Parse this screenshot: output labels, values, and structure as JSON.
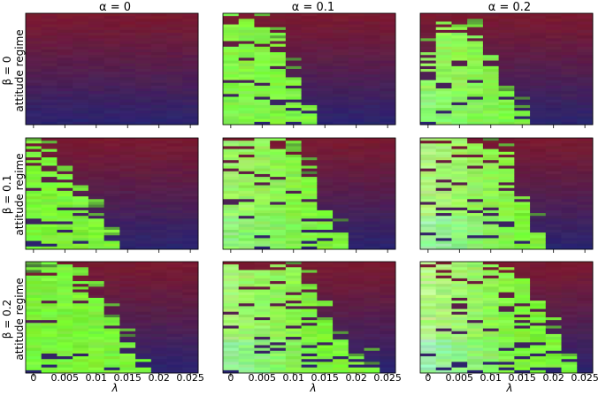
{
  "chart_data": {
    "type": "heatmap",
    "layout": {
      "rows": 3,
      "cols": 3
    },
    "column_titles": [
      "α = 0",
      "α = 0.1",
      "α = 0.2"
    ],
    "row_titles": [
      {
        "param": "β = 0",
        "regime": "attitude regime"
      },
      {
        "param": "β = 0.1",
        "regime": "attitude regime"
      },
      {
        "param": "β = 0.2",
        "regime": "attitude regime"
      }
    ],
    "xlabel": "λ",
    "x_ticks": [
      {
        "value": 0,
        "label": "0"
      },
      {
        "value": 0.005,
        "label": "0.005"
      },
      {
        "value": 0.01,
        "label": "0.01"
      },
      {
        "value": 0.015,
        "label": "0.015"
      },
      {
        "value": 0.02,
        "label": "0.02"
      },
      {
        "value": 0.025,
        "label": "0.025"
      }
    ],
    "x_columns": [
      0,
      0.0025,
      0.005,
      0.0075,
      0.01,
      0.0125,
      0.015,
      0.0175,
      0.02,
      0.0225,
      0.025
    ],
    "xlim": [
      -0.00125,
      0.02625
    ],
    "rows_per_panel": 40,
    "grid": false,
    "legend": "none",
    "colors": {
      "dark_top": "#7a1a30",
      "dark_bottom": "#2a2470",
      "bright_green": "#7cf53a",
      "pale_green": "#c8f5a0",
      "pale_cyan": "#a8f0d8"
    },
    "panels": [
      {
        "row": 0,
        "col": 0,
        "green_extent": [
          0,
          0,
          0,
          0,
          0,
          0,
          0,
          0,
          0,
          0,
          0
        ],
        "pale": 0
      },
      {
        "row": 0,
        "col": 1,
        "green_extent": [
          1.0,
          1.0,
          0.87,
          0.77,
          0.45,
          0.1,
          0,
          0,
          0,
          0,
          0
        ],
        "pale": 0.15
      },
      {
        "row": 0,
        "col": 2,
        "green_extent": [
          0.65,
          0.9,
          0.9,
          0.78,
          0.6,
          0.25,
          0.08,
          0,
          0,
          0,
          0
        ],
        "pale": 0.45
      },
      {
        "row": 1,
        "col": 0,
        "green_extent": [
          0.95,
          0.85,
          0.62,
          0.45,
          0.3,
          0.12,
          0,
          0,
          0,
          0,
          0
        ],
        "pale": 0
      },
      {
        "row": 1,
        "col": 1,
        "green_extent": [
          1.0,
          1.0,
          1.0,
          0.95,
          0.85,
          0.65,
          0.3,
          0.1,
          0,
          0,
          0
        ],
        "pale": 0.55
      },
      {
        "row": 1,
        "col": 2,
        "green_extent": [
          1.0,
          1.0,
          1.0,
          1.0,
          0.95,
          0.85,
          0.45,
          0.15,
          0,
          0,
          0
        ],
        "pale": 0.85
      },
      {
        "row": 2,
        "col": 0,
        "green_extent": [
          0.9,
          1.0,
          1.0,
          0.82,
          0.65,
          0.45,
          0.22,
          0.08,
          0,
          0,
          0
        ],
        "pale": 0
      },
      {
        "row": 2,
        "col": 1,
        "green_extent": [
          1.0,
          1.0,
          1.0,
          1.0,
          0.95,
          0.8,
          0.5,
          0.3,
          0.1,
          0.05,
          0
        ],
        "pale": 0.7
      },
      {
        "row": 2,
        "col": 2,
        "green_extent": [
          1.0,
          1.0,
          1.0,
          1.0,
          1.0,
          0.95,
          0.85,
          0.6,
          0.4,
          0.15,
          0
        ],
        "pale": 0.95
      }
    ]
  }
}
